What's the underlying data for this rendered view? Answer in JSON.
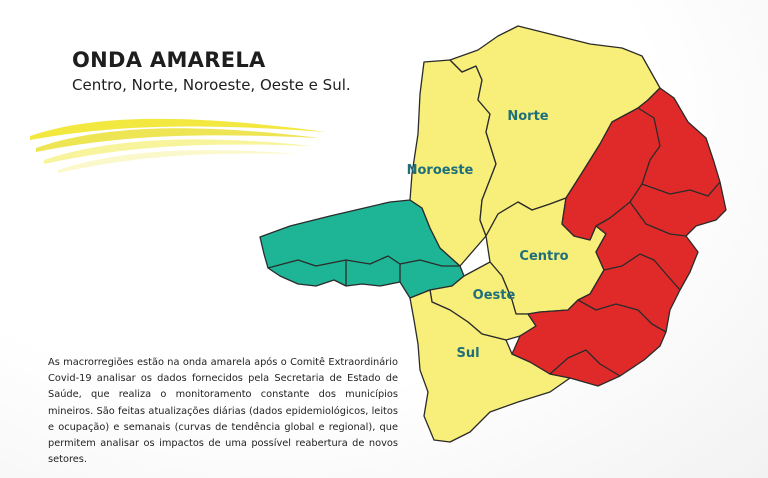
{
  "header": {
    "title": "ONDA AMARELA",
    "subtitle": "Centro, Norte, Noroeste, Oeste e Sul."
  },
  "map": {
    "regions": [
      {
        "id": "norte",
        "label": "Norte",
        "wave": "amarela"
      },
      {
        "id": "noroeste",
        "label": "Noroeste",
        "wave": "amarela"
      },
      {
        "id": "centro",
        "label": "Centro",
        "wave": "amarela"
      },
      {
        "id": "oeste",
        "label": "Oeste",
        "wave": "amarela"
      },
      {
        "id": "sul",
        "label": "Sul",
        "wave": "amarela"
      },
      {
        "id": "triangulo",
        "label": "",
        "wave": "verde"
      },
      {
        "id": "leste",
        "label": "",
        "wave": "vermelha"
      }
    ],
    "colors": {
      "amarela": "#f7ef7a",
      "verde": "#1db595",
      "vermelha": "#e02a2a",
      "border": "#2b2b2b",
      "label": "#1f6f7a",
      "swoosh": "#f1e52a"
    }
  },
  "description": "As macrorregiões estão na onda amarela após o Comitê Extraordinário Covid-19 analisar os dados fornecidos pela Secretaria de Estado de Saúde, que realiza o monitoramento constante dos municípios mineiros. São feitas atualizações diárias (dados epidemiológicos, leitos e ocupação) e semanais (curvas de tendência global e regional), que permitem analisar os impactos de uma possível reabertura de novos setores."
}
